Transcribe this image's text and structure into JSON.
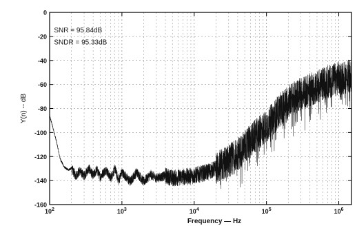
{
  "chart_data": {
    "type": "line",
    "title": "",
    "xlabel": "Frequency — Hz",
    "ylabel": "Y(n) -- dB",
    "x_scale": "log",
    "xlim": [
      100,
      1500000
    ],
    "ylim": [
      -160,
      0
    ],
    "grid": true,
    "x_ticks": [
      {
        "value": 100,
        "base": "10",
        "exp": "2"
      },
      {
        "value": 1000,
        "base": "10",
        "exp": "3"
      },
      {
        "value": 10000,
        "base": "10",
        "exp": "4"
      },
      {
        "value": 100000,
        "base": "10",
        "exp": "5"
      },
      {
        "value": 1000000,
        "base": "10",
        "exp": "6"
      }
    ],
    "y_ticks": [
      {
        "value": 0,
        "label": "0"
      },
      {
        "value": -20,
        "label": "-20"
      },
      {
        "value": -40,
        "label": "-40"
      },
      {
        "value": -60,
        "label": "-60"
      },
      {
        "value": -80,
        "label": "-80"
      },
      {
        "value": -100,
        "label": "-100"
      },
      {
        "value": -120,
        "label": "-120"
      },
      {
        "value": -140,
        "label": "-140"
      },
      {
        "value": -160,
        "label": "-160"
      }
    ],
    "annotations": [
      {
        "text": "SNR = 95.84dB",
        "x": 115,
        "y": -15
      },
      {
        "text": "SNDR = 95.33dB",
        "x": 115,
        "y": -25
      }
    ],
    "series": [
      {
        "x": [
          100,
          110,
          125,
          140,
          160,
          180,
          200,
          230,
          260,
          300,
          350,
          400,
          450,
          500,
          600,
          700,
          800,
          900,
          1000,
          1300,
          1600,
          2000,
          2500,
          3000,
          4000,
          5000,
          7000,
          10000,
          15000,
          20000,
          30000,
          40000,
          50000,
          70000,
          100000,
          150000,
          200000,
          300000,
          500000,
          700000,
          1000000,
          1500000
        ],
        "y": [
          -86,
          -95,
          -108,
          -122,
          -129,
          -131,
          -130,
          -136,
          -132,
          -136,
          -130,
          -136,
          -131,
          -137,
          -131,
          -138,
          -130,
          -140,
          -133,
          -141,
          -133,
          -141,
          -135,
          -138,
          -136,
          -138,
          -137,
          -136,
          -133,
          -130,
          -124,
          -118,
          -112,
          -103,
          -95,
          -82,
          -74,
          -68,
          -62,
          -58,
          -55,
          -53
        ]
      }
    ]
  }
}
